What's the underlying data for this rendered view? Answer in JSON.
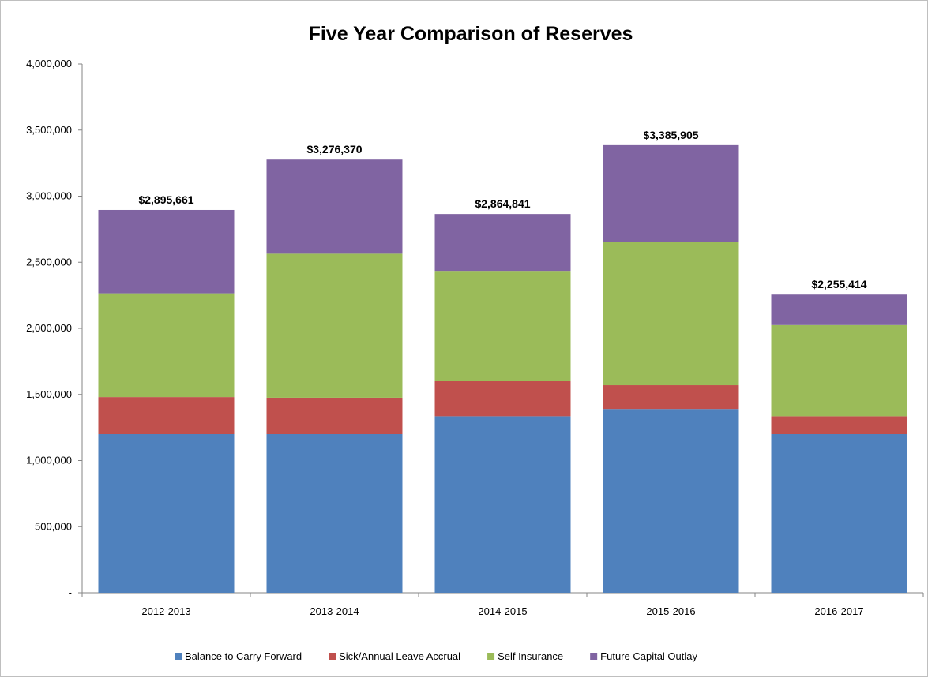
{
  "chart_data": {
    "type": "bar",
    "stacked": true,
    "title": "Five Year Comparison of Reserves",
    "xlabel": "",
    "ylabel": "",
    "ylim": [
      0,
      4000000
    ],
    "yticks": [
      0,
      500000,
      1000000,
      1500000,
      2000000,
      2500000,
      3000000,
      3500000,
      4000000
    ],
    "ytick_labels": [
      "-",
      "500,000",
      "1,000,000",
      "1,500,000",
      "2,000,000",
      "2,500,000",
      "3,000,000",
      "3,500,000",
      "4,000,000"
    ],
    "grid": false,
    "legend_position": "bottom",
    "categories": [
      "2012-2013",
      "2013-2014",
      "2014-2015",
      "2015-2016",
      "2016-2017"
    ],
    "totals": [
      "$2,895,661",
      "$3,276,370",
      "$2,864,841",
      "$3,385,905",
      "$2,255,414"
    ],
    "series": [
      {
        "name": "Balance to Carry Forward",
        "color": "#4f81bd",
        "values": [
          1200000,
          1200000,
          1335000,
          1390000,
          1200000
        ]
      },
      {
        "name": "Sick/Annual Leave Accrual",
        "color": "#c0504d",
        "values": [
          280000,
          275000,
          265000,
          180000,
          135000
        ]
      },
      {
        "name": "Self Insurance",
        "color": "#9bbb59",
        "values": [
          785000,
          1090000,
          835000,
          1085000,
          690000
        ]
      },
      {
        "name": "Future Capital Outlay",
        "color": "#8064a2",
        "values": [
          630661,
          711370,
          429841,
          730905,
          230414
        ]
      }
    ]
  }
}
